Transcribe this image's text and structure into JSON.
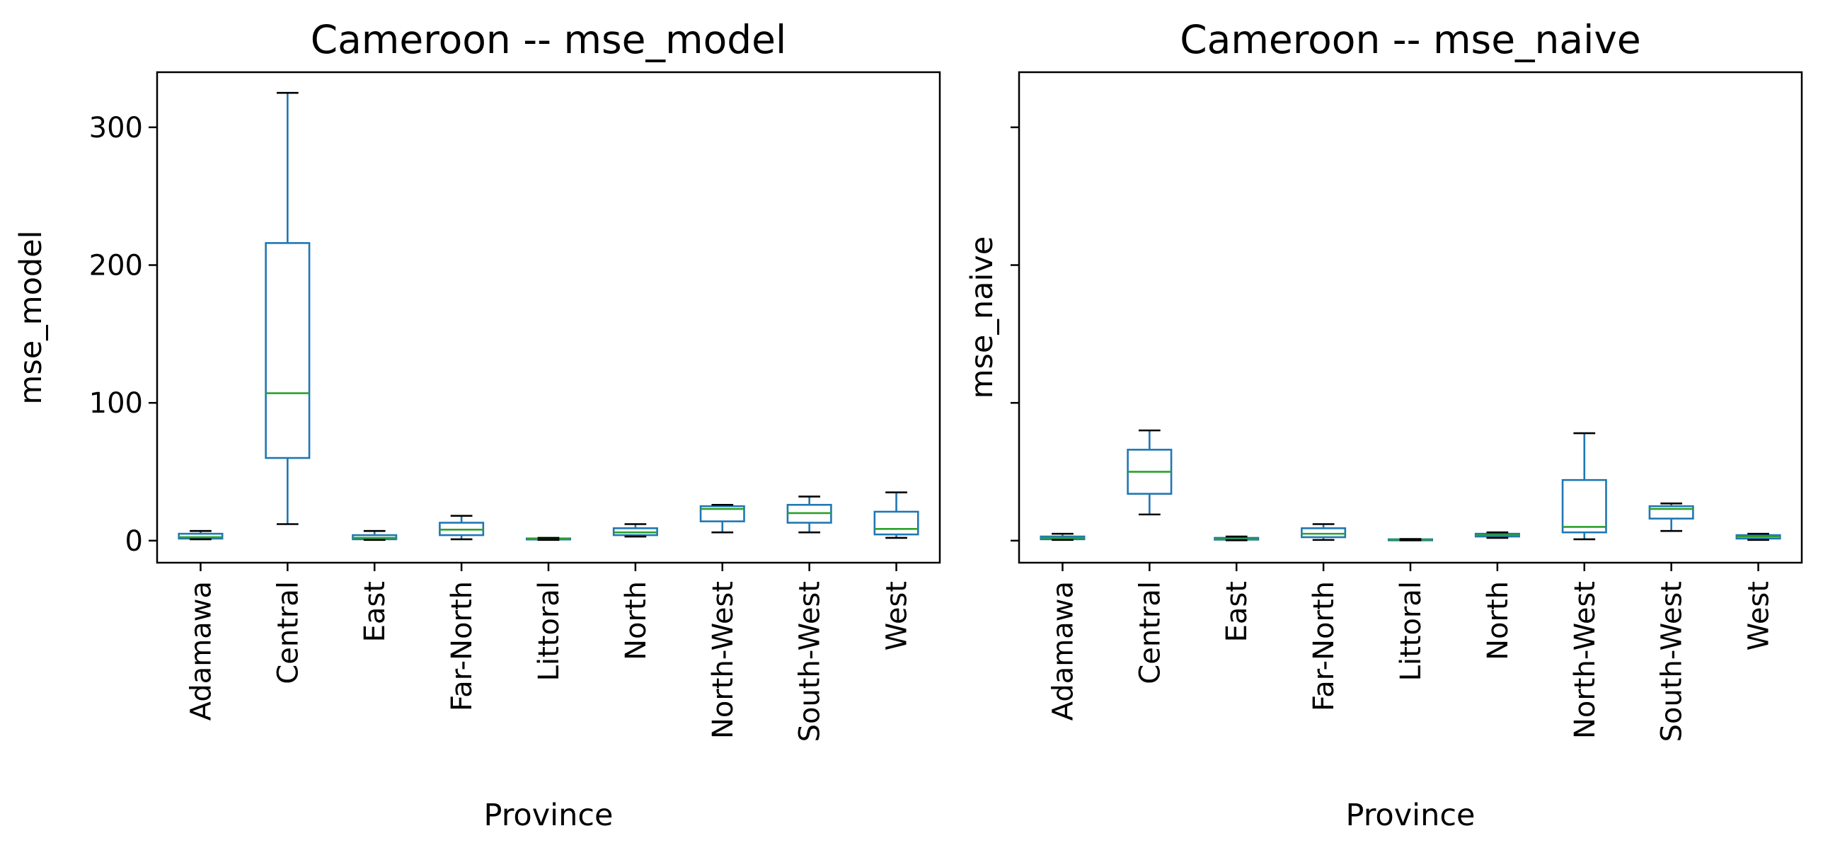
{
  "chart_data": [
    {
      "type": "box",
      "title": "Cameroon -- mse_model",
      "xlabel": "Province",
      "ylabel": "mse_model",
      "ylim": [
        -16,
        340
      ],
      "yticks": [
        0,
        100,
        200,
        300
      ],
      "show_ytick_labels": true,
      "grid": false,
      "categories": [
        "Adamawa",
        "Central",
        "East",
        "Far-North",
        "Littoral",
        "North",
        "North-West",
        "South-West",
        "West"
      ],
      "boxes": [
        {
          "whislo": 1,
          "q1": 1.5,
          "med": 2.5,
          "q3": 5,
          "whishi": 7
        },
        {
          "whislo": 12,
          "q1": 60,
          "med": 107,
          "q3": 216,
          "whishi": 325
        },
        {
          "whislo": 0.5,
          "q1": 1,
          "med": 2,
          "q3": 4,
          "whishi": 7
        },
        {
          "whislo": 1,
          "q1": 4,
          "med": 8,
          "q3": 13,
          "whishi": 18
        },
        {
          "whislo": 0.5,
          "q1": 1,
          "med": 1.3,
          "q3": 1.6,
          "whishi": 2
        },
        {
          "whislo": 3,
          "q1": 4,
          "med": 6,
          "q3": 9,
          "whishi": 12
        },
        {
          "whislo": 6,
          "q1": 14,
          "med": 23,
          "q3": 25,
          "whishi": 26
        },
        {
          "whislo": 6,
          "q1": 13,
          "med": 20,
          "q3": 26,
          "whishi": 32
        },
        {
          "whislo": 2,
          "q1": 4.5,
          "med": 8.5,
          "q3": 21,
          "whishi": 35
        }
      ]
    },
    {
      "type": "box",
      "title": "Cameroon -- mse_naive",
      "xlabel": "Province",
      "ylabel": "mse_naive",
      "ylim": [
        -16,
        340
      ],
      "yticks": [
        0,
        100,
        200,
        300
      ],
      "show_ytick_labels": false,
      "grid": false,
      "categories": [
        "Adamawa",
        "Central",
        "East",
        "Far-North",
        "Littoral",
        "North",
        "North-West",
        "South-West",
        "West"
      ],
      "boxes": [
        {
          "whislo": 0.5,
          "q1": 1,
          "med": 2,
          "q3": 3,
          "whishi": 5
        },
        {
          "whislo": 19,
          "q1": 34,
          "med": 50,
          "q3": 66,
          "whishi": 80
        },
        {
          "whislo": 0.3,
          "q1": 0.7,
          "med": 1,
          "q3": 2,
          "whishi": 3
        },
        {
          "whislo": 0.5,
          "q1": 2.5,
          "med": 5,
          "q3": 9,
          "whishi": 12
        },
        {
          "whislo": 0.3,
          "q1": 0.5,
          "med": 0.8,
          "q3": 1,
          "whishi": 1.2
        },
        {
          "whislo": 2,
          "q1": 3,
          "med": 4,
          "q3": 5,
          "whishi": 6
        },
        {
          "whislo": 1,
          "q1": 6,
          "med": 10,
          "q3": 44,
          "whishi": 78
        },
        {
          "whislo": 7,
          "q1": 16,
          "med": 23,
          "q3": 25,
          "whishi": 27
        },
        {
          "whislo": 0.5,
          "q1": 1.5,
          "med": 3,
          "q3": 4,
          "whishi": 5
        }
      ]
    }
  ],
  "style": {
    "box_color": "#1f77b4",
    "median_color": "#2ca02c",
    "cap_color": "#000000",
    "axis_color": "#000000",
    "background": "#ffffff"
  }
}
